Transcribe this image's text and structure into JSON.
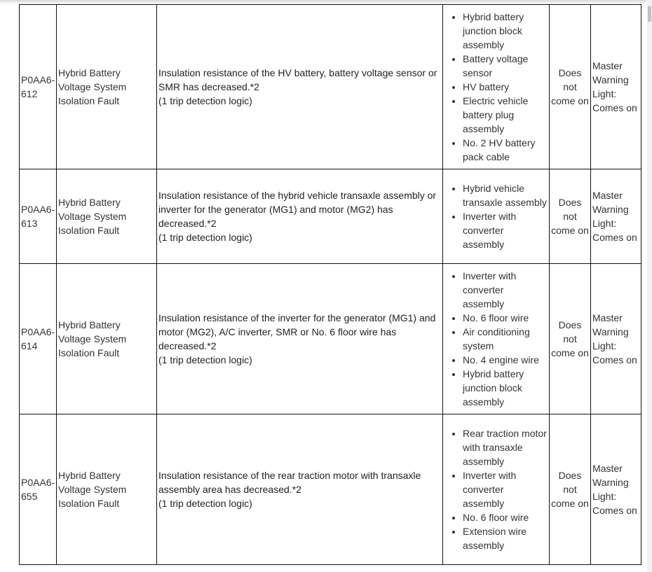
{
  "rows": [
    {
      "code": "P0AA6-612",
      "name": "Hybrid Battery Voltage System Isolation Fault",
      "desc": "Insulation resistance of the HV battery, battery voltage sensor or SMR has decreased.*2",
      "logic": "(1 trip detection logic)",
      "areas": [
        "Hybrid battery junction block assembly",
        "Battery voltage sensor",
        "HV battery",
        "Electric vehicle battery plug assembly",
        "No. 2 HV battery pack cable"
      ],
      "mil": "Does not come on",
      "warning": "Master Warning Light: Comes on"
    },
    {
      "code": "P0AA6-613",
      "name": "Hybrid Battery Voltage System Isolation Fault",
      "desc": "Insulation resistance of the hybrid vehicle transaxle assembly or inverter for the generator (MG1) and motor (MG2) has decreased.*2",
      "logic": "(1 trip detection logic)",
      "areas": [
        "Hybrid vehicle transaxle assembly",
        "Inverter with converter assembly"
      ],
      "mil": "Does not come on",
      "warning": "Master Warning Light: Comes on"
    },
    {
      "code": "P0AA6-614",
      "name": "Hybrid Battery Voltage System Isolation Fault",
      "desc": "Insulation resistance of the inverter for the generator (MG1) and motor (MG2), A/C inverter, SMR or No. 6 floor wire has decreased.*2",
      "logic": "(1 trip detection logic)",
      "areas": [
        "Inverter with converter assembly",
        "No. 6 floor wire",
        "Air conditioning system",
        "No. 4 engine wire",
        "Hybrid battery junction block assembly"
      ],
      "mil": "Does not come on",
      "warning": "Master Warning Light: Comes on"
    },
    {
      "code": "P0AA6-655",
      "name": "Hybrid Battery Voltage System Isolation Fault",
      "desc": "Insulation resistance of the rear traction motor with transaxle assembly area has decreased.*2",
      "logic": "(1 trip detection logic)",
      "areas": [
        "Rear traction motor with transaxle assembly",
        "Inverter with converter assembly",
        "No. 6 floor wire",
        "Extension wire assembly"
      ],
      "mil": "Does not come on",
      "warning": "Master Warning Light: Comes on"
    }
  ]
}
